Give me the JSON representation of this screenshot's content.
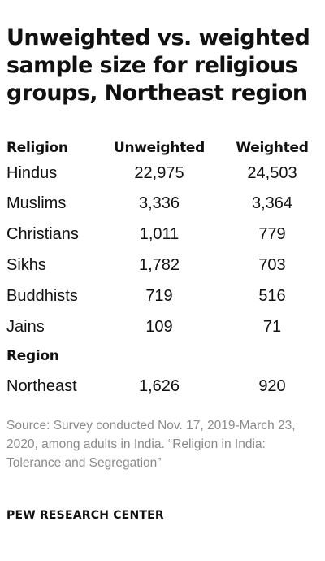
{
  "title": "Unweighted vs. weighted sample size for religious groups, Northeast region",
  "table": {
    "headers": {
      "religion": "Religion",
      "unweighted": "Unweighted",
      "weighted": "Weighted"
    },
    "religion_rows": [
      {
        "name": "Hindus",
        "unweighted": "22,975",
        "weighted": "24,503"
      },
      {
        "name": "Muslims",
        "unweighted": "3,336",
        "weighted": "3,364"
      },
      {
        "name": "Christians",
        "unweighted": "1,011",
        "weighted": "779"
      },
      {
        "name": "Sikhs",
        "unweighted": "1,782",
        "weighted": "703"
      },
      {
        "name": "Buddhists",
        "unweighted": "719",
        "weighted": "516"
      },
      {
        "name": "Jains",
        "unweighted": "109",
        "weighted": "71"
      }
    ],
    "region_header": "Region",
    "region_rows": [
      {
        "name": "Northeast",
        "unweighted": "1,626",
        "weighted": "920"
      }
    ]
  },
  "source": "Source: Survey conducted Nov. 17, 2019-March 23, 2020, among adults in India. “Religion in India: Tolerance and Segregation”",
  "brand": "PEW RESEARCH CENTER"
}
